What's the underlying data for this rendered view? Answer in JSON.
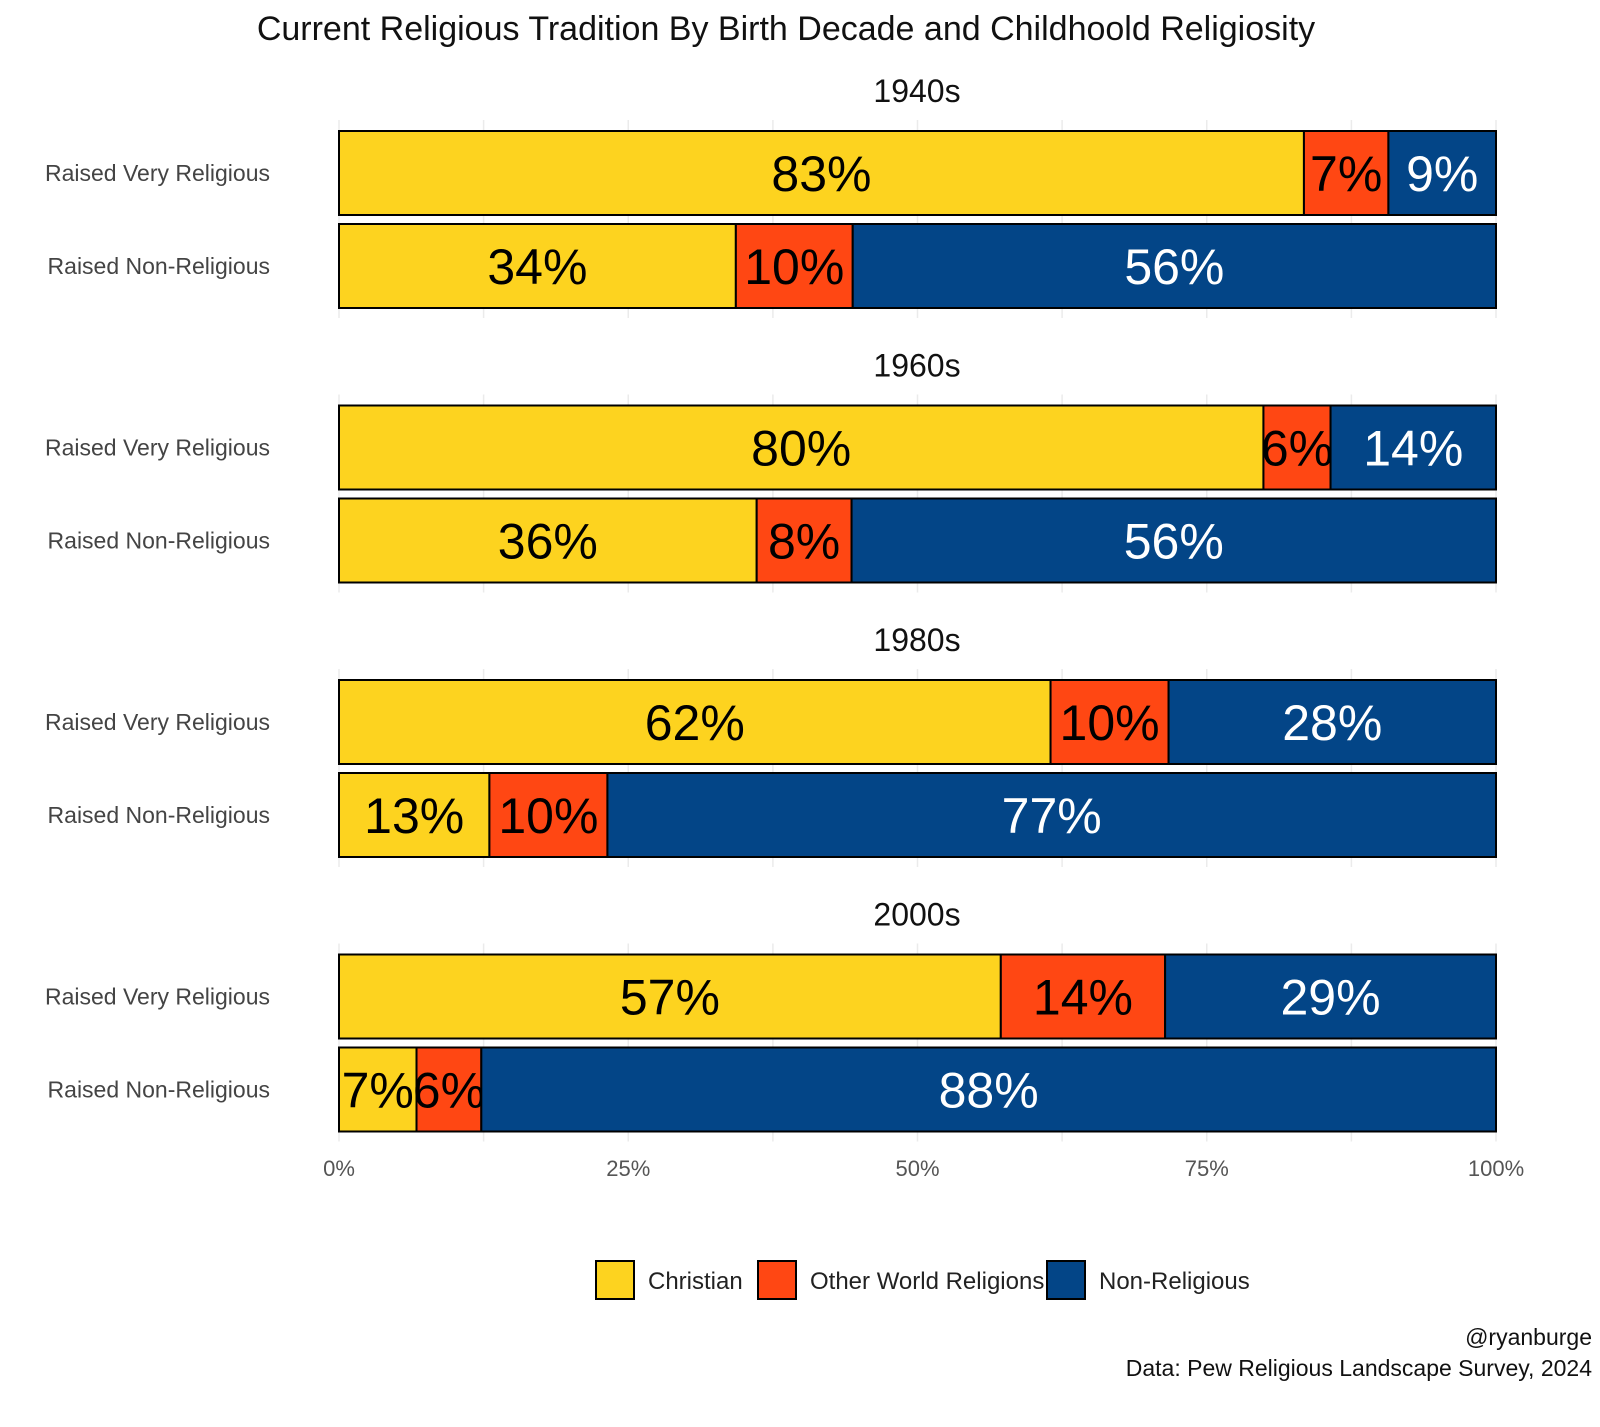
{
  "chart_data": {
    "type": "bar",
    "orientation": "horizontal-stacked-100",
    "title": "Current Religious Tradition By Birth Decade and Childhoold Religiosity",
    "xlabel": "",
    "ylabel": "",
    "xlim": [
      0,
      100
    ],
    "x_ticks": [
      "0%",
      "25%",
      "50%",
      "75%",
      "100%"
    ],
    "grid": true,
    "legend_position": "bottom",
    "series_names": [
      "Christian",
      "Other World Religions",
      "Non-Religious"
    ],
    "colors": [
      "#FDD31F",
      "#FF4713",
      "#034587"
    ],
    "label_colors": [
      "#000000",
      "#000000",
      "#ffffff"
    ],
    "categories": [
      "Raised Very Religious",
      "Raised Non-Religious"
    ],
    "facets": [
      {
        "title": "1940s",
        "rows": [
          {
            "category": "Raised Very Religious",
            "values": [
              83.4,
              7.3,
              9.3
            ],
            "labels": [
              "83%",
              "7%",
              "9%"
            ]
          },
          {
            "category": "Raised Non-Religious",
            "values": [
              34.3,
              10.1,
              55.6
            ],
            "labels": [
              "34%",
              "10%",
              "56%"
            ]
          }
        ]
      },
      {
        "title": "1960s",
        "rows": [
          {
            "category": "Raised Very Religious",
            "values": [
              79.9,
              5.8,
              14.3
            ],
            "labels": [
              "80%",
              "6%",
              "14%"
            ]
          },
          {
            "category": "Raised Non-Religious",
            "values": [
              36.1,
              8.2,
              55.7
            ],
            "labels": [
              "36%",
              "8%",
              "56%"
            ]
          }
        ]
      },
      {
        "title": "1980s",
        "rows": [
          {
            "category": "Raised Very Religious",
            "values": [
              61.5,
              10.2,
              28.3
            ],
            "labels": [
              "62%",
              "10%",
              "28%"
            ]
          },
          {
            "category": "Raised Non-Religious",
            "values": [
              13.0,
              10.2,
              76.8
            ],
            "labels": [
              "13%",
              "10%",
              "77%"
            ]
          }
        ]
      },
      {
        "title": "2000s",
        "rows": [
          {
            "category": "Raised Very Religious",
            "values": [
              57.2,
              14.2,
              28.6
            ],
            "labels": [
              "57%",
              "14%",
              "29%"
            ]
          },
          {
            "category": "Raised Non-Religious",
            "values": [
              6.7,
              5.6,
              87.7
            ],
            "labels": [
              "7%",
              "6%",
              "88%"
            ]
          }
        ]
      }
    ],
    "caption": [
      "@ryanburge",
      "Data: Pew Religious Landscape Survey, 2024"
    ]
  }
}
